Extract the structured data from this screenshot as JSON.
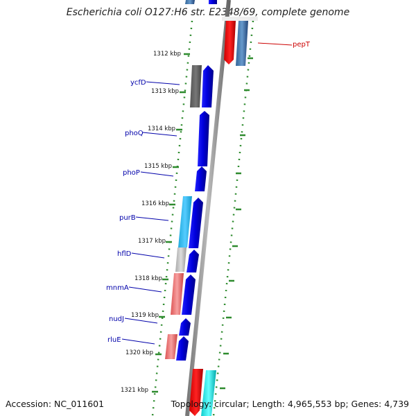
{
  "title": "Escherichia coli O127:H6 str. E2348/69, complete genome",
  "footer": {
    "accession": "Accession: NC_011601",
    "topology": "Topology: circular; Length: 4,965,553 bp; Genes: 4,739"
  },
  "ticks": [
    {
      "label": "1312 kbp"
    },
    {
      "label": "1313 kbp"
    },
    {
      "label": "1314 kbp"
    },
    {
      "label": "1315 kbp"
    },
    {
      "label": "1316 kbp"
    },
    {
      "label": "1317 kbp"
    },
    {
      "label": "1318 kbp"
    },
    {
      "label": "1319 kbp"
    },
    {
      "label": "1320 kbp"
    },
    {
      "label": "1321 kbp"
    }
  ],
  "gene_labels": [
    {
      "name": "pepT",
      "color": "#cc0000"
    },
    {
      "name": "ycfD",
      "color": "#0000aa"
    },
    {
      "name": "phoQ",
      "color": "#0000aa"
    },
    {
      "name": "phoP",
      "color": "#0000aa"
    },
    {
      "name": "purB",
      "color": "#0000aa"
    },
    {
      "name": "hflD",
      "color": "#0000aa"
    },
    {
      "name": "mnmA",
      "color": "#0000aa"
    },
    {
      "name": "nudJ",
      "color": "#0000aa"
    },
    {
      "name": "rluE",
      "color": "#0000aa"
    }
  ],
  "colors": {
    "backbone": "#888888",
    "tick_dots": "#2e8b2e",
    "cds_forward": "#0000ee",
    "cds_dark": "#666666",
    "cds_light_blue": "#33bbee",
    "cds_gray": "#bbbbbb",
    "cds_pink": "#ee7777",
    "cds_red": "#ee0000",
    "cds_steel": "#4477aa",
    "cds_cyan": "#22eeee"
  }
}
